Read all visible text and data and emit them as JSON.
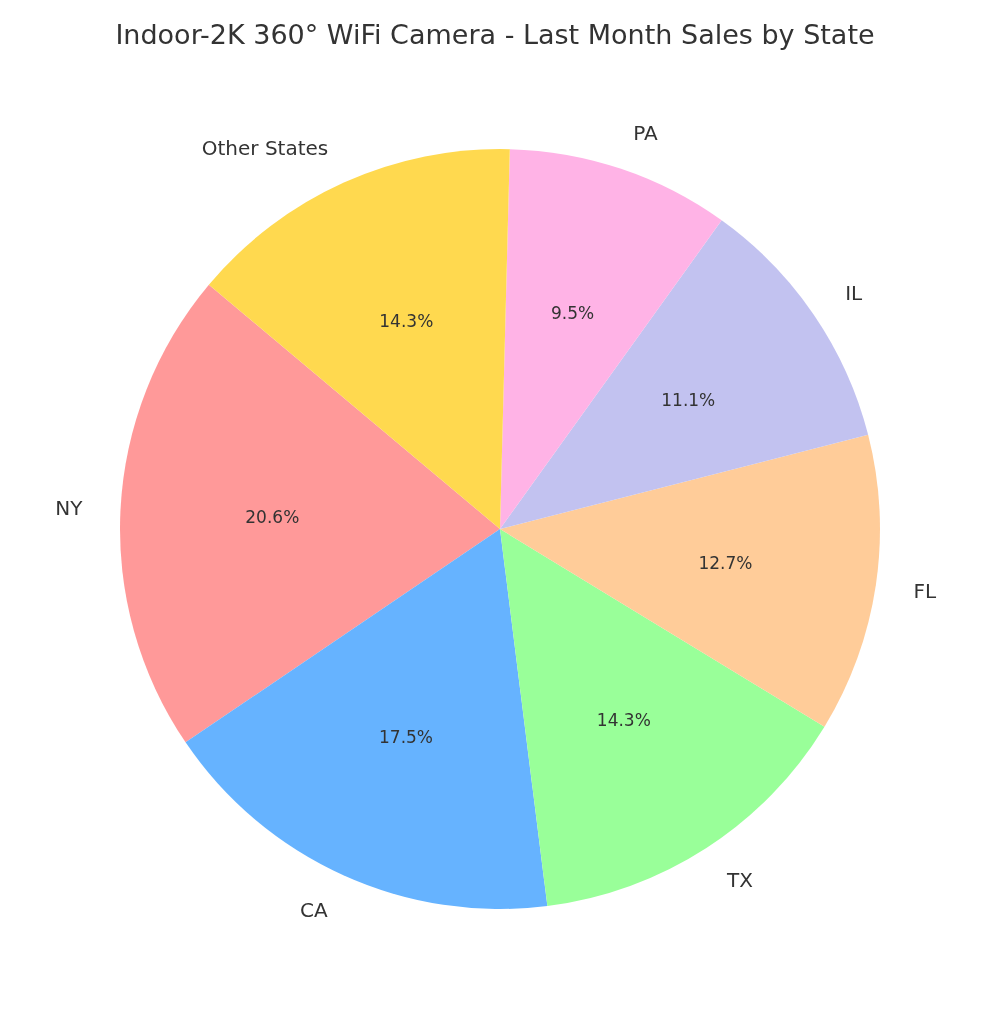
{
  "chart_data": {
    "type": "pie",
    "title": "Indoor-2K 360° WiFi Camera - Last Month Sales by State",
    "categories": [
      "NY",
      "CA",
      "TX",
      "FL",
      "IL",
      "PA",
      "Other States"
    ],
    "values": [
      20.6,
      17.5,
      14.3,
      12.7,
      11.1,
      9.5,
      14.3
    ],
    "value_labels": [
      "20.6%",
      "17.5%",
      "14.3%",
      "12.7%",
      "11.1%",
      "9.5%",
      "14.3%"
    ],
    "colors": [
      "#ff9999",
      "#66b3ff",
      "#99ff99",
      "#ffcc99",
      "#c2c2f0",
      "#ffb3e6",
      "#ffd94f"
    ],
    "legend": false
  }
}
